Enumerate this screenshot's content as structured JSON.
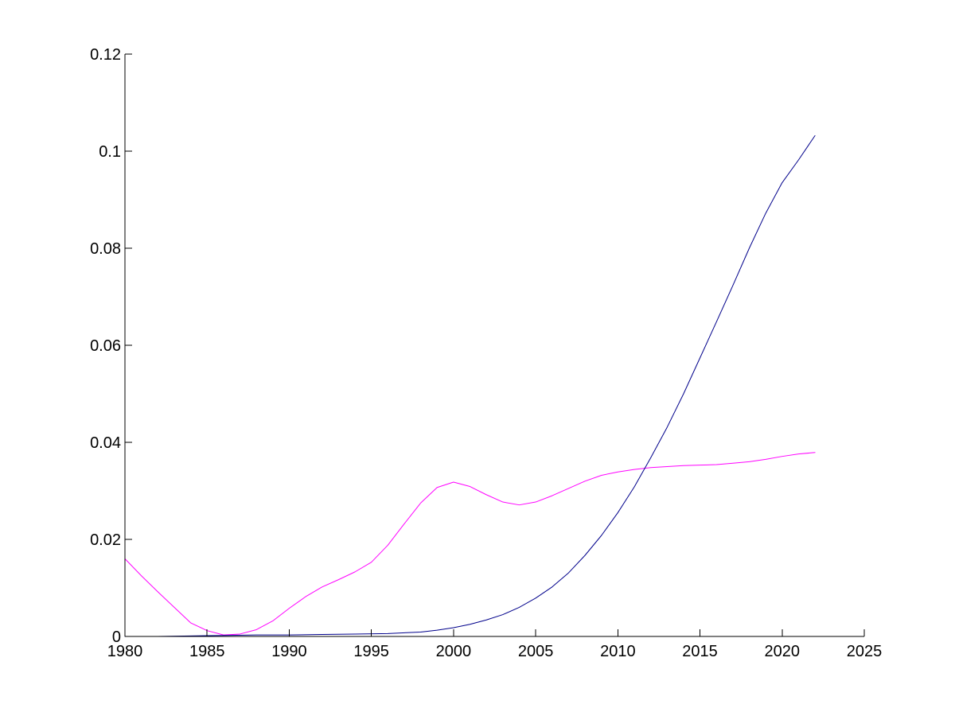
{
  "chart_data": {
    "type": "line",
    "title": "",
    "xlabel": "",
    "ylabel": "",
    "xlim": [
      1980,
      2025
    ],
    "ylim": [
      0,
      0.12
    ],
    "grid": false,
    "legend": "none",
    "x_ticks": [
      1980,
      1985,
      1990,
      1995,
      2000,
      2005,
      2010,
      2015,
      2020,
      2025
    ],
    "x_tick_labels": [
      "1980",
      "1985",
      "1990",
      "1995",
      "2000",
      "2005",
      "2010",
      "2015",
      "2020",
      "2025"
    ],
    "y_ticks": [
      0,
      0.02,
      0.04,
      0.06,
      0.08,
      0.1,
      0.12
    ],
    "y_tick_labels": [
      "0",
      "0.02",
      "0.04",
      "0.06",
      "0.08",
      "0.1",
      "0.12"
    ],
    "series": [
      {
        "color": "#ff00ff",
        "x": [
          1980,
          1981,
          1982,
          1983,
          1984,
          1985,
          1986,
          1987,
          1988,
          1989,
          1990,
          1991,
          1992,
          1993,
          1994,
          1995,
          1996,
          1997,
          1998,
          1999,
          2000,
          2001,
          2002,
          2003,
          2004,
          2005,
          2006,
          2007,
          2008,
          2009,
          2010,
          2011,
          2012,
          2013,
          2014,
          2015,
          2016,
          2017,
          2018,
          2019,
          2020,
          2021,
          2022
        ],
        "values": [
          0.016,
          0.0125,
          0.0092,
          0.006,
          0.0028,
          0.0012,
          0.0003,
          0.0005,
          0.0014,
          0.0032,
          0.0058,
          0.0082,
          0.0102,
          0.0117,
          0.0133,
          0.0153,
          0.0188,
          0.0232,
          0.0275,
          0.0307,
          0.0318,
          0.0309,
          0.0292,
          0.0277,
          0.0271,
          0.0277,
          0.029,
          0.0305,
          0.032,
          0.0332,
          0.0339,
          0.0344,
          0.0348,
          0.035,
          0.0352,
          0.0353,
          0.0354,
          0.0357,
          0.036,
          0.0365,
          0.0371,
          0.0376,
          0.0379
        ]
      },
      {
        "color": "#00008b",
        "x": [
          1980,
          1982,
          1984,
          1986,
          1988,
          1990,
          1992,
          1994,
          1996,
          1998,
          1999,
          2000,
          2001,
          2002,
          2003,
          2004,
          2005,
          2006,
          2007,
          2008,
          2009,
          2010,
          2011,
          2012,
          2013,
          2014,
          2015,
          2016,
          2017,
          2018,
          2019,
          2020,
          2021,
          2022
        ],
        "values": [
          0,
          0,
          0.0001,
          0.0002,
          0.0003,
          0.0003,
          0.0004,
          0.0005,
          0.0006,
          0.0009,
          0.0013,
          0.0018,
          0.0025,
          0.0034,
          0.0045,
          0.006,
          0.0079,
          0.0102,
          0.0131,
          0.0167,
          0.0208,
          0.0255,
          0.0308,
          0.0368,
          0.0431,
          0.05,
          0.0574,
          0.0648,
          0.0723,
          0.08,
          0.0872,
          0.0935,
          0.0982,
          0.1032
        ]
      }
    ]
  }
}
